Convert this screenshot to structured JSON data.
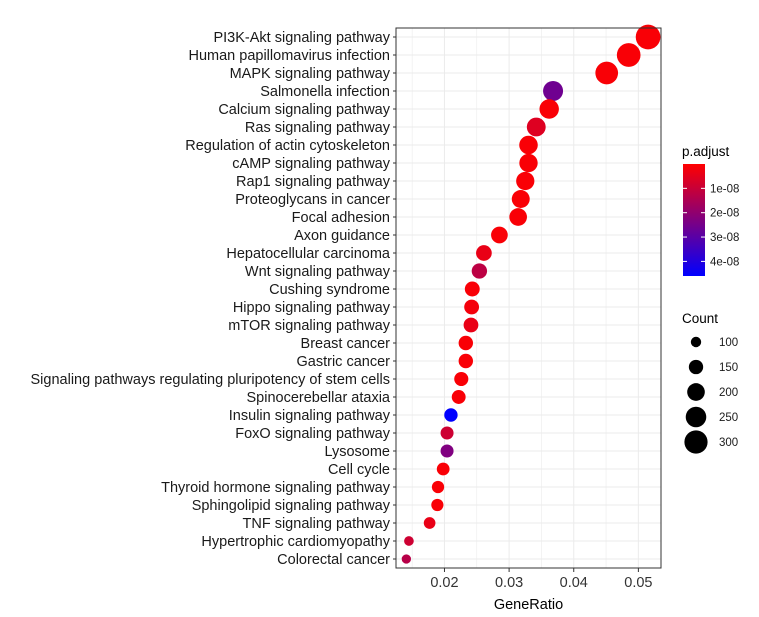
{
  "chart_data": {
    "type": "scatter",
    "xlabel": "GeneRatio",
    "xlim": [
      0.0125,
      0.0535
    ],
    "xticks": [
      0.02,
      0.03,
      0.04,
      0.05
    ],
    "xtick_labels": [
      "0.02",
      "0.03",
      "0.04",
      "0.05"
    ],
    "grid": true,
    "legend_position": "right",
    "color_scale": {
      "title": "p.adjust",
      "low_color": "#ff0000",
      "high_color": "#0000ff",
      "min": 0,
      "max": 4.6e-08,
      "ticks": [
        1e-08,
        2e-08,
        3e-08,
        4e-08
      ],
      "tick_labels": [
        "1e-08",
        "2e-08",
        "3e-08",
        "4e-08"
      ]
    },
    "size_scale": {
      "title": "Count",
      "values": [
        100,
        150,
        200,
        250,
        300
      ],
      "labels": [
        "100",
        "150",
        "200",
        "250",
        "300"
      ]
    },
    "points": [
      {
        "term": "PI3K-Akt signaling pathway",
        "gene_ratio": 0.0515,
        "count": 330,
        "p_adjust": 1e-09
      },
      {
        "term": "Human papillomavirus infection",
        "gene_ratio": 0.0485,
        "count": 310,
        "p_adjust": 1e-09
      },
      {
        "term": "MAPK signaling pathway",
        "gene_ratio": 0.0451,
        "count": 290,
        "p_adjust": 1e-09
      },
      {
        "term": "Salmonella infection",
        "gene_ratio": 0.0368,
        "count": 240,
        "p_adjust": 2.6e-08
      },
      {
        "term": "Calcium signaling pathway",
        "gene_ratio": 0.0362,
        "count": 230,
        "p_adjust": 1e-09
      },
      {
        "term": "Ras signaling pathway",
        "gene_ratio": 0.0342,
        "count": 220,
        "p_adjust": 6e-09
      },
      {
        "term": "Regulation of actin cytoskeleton",
        "gene_ratio": 0.033,
        "count": 215,
        "p_adjust": 1e-09
      },
      {
        "term": "cAMP signaling pathway",
        "gene_ratio": 0.033,
        "count": 212,
        "p_adjust": 1e-09
      },
      {
        "term": "Rap1 signaling pathway",
        "gene_ratio": 0.0325,
        "count": 210,
        "p_adjust": 1e-09
      },
      {
        "term": "Proteoglycans in cancer",
        "gene_ratio": 0.0318,
        "count": 205,
        "p_adjust": 1e-09
      },
      {
        "term": "Focal adhesion",
        "gene_ratio": 0.0314,
        "count": 200,
        "p_adjust": 1e-09
      },
      {
        "term": "Axon guidance",
        "gene_ratio": 0.0285,
        "count": 185,
        "p_adjust": 1e-09
      },
      {
        "term": "Hepatocellular carcinoma",
        "gene_ratio": 0.0261,
        "count": 170,
        "p_adjust": 4e-09
      },
      {
        "term": "Wnt signaling pathway",
        "gene_ratio": 0.0254,
        "count": 165,
        "p_adjust": 1.2e-08
      },
      {
        "term": "Cushing syndrome",
        "gene_ratio": 0.0243,
        "count": 158,
        "p_adjust": 1e-09
      },
      {
        "term": "Hippo signaling pathway",
        "gene_ratio": 0.0242,
        "count": 157,
        "p_adjust": 2e-09
      },
      {
        "term": "mTOR signaling pathway",
        "gene_ratio": 0.0241,
        "count": 156,
        "p_adjust": 4e-09
      },
      {
        "term": "Breast cancer",
        "gene_ratio": 0.0233,
        "count": 151,
        "p_adjust": 1e-09
      },
      {
        "term": "Gastric cancer",
        "gene_ratio": 0.0233,
        "count": 151,
        "p_adjust": 1e-09
      },
      {
        "term": "Signaling pathways regulating pluripotency of stem cells",
        "gene_ratio": 0.0226,
        "count": 147,
        "p_adjust": 1e-09
      },
      {
        "term": "Spinocerebellar ataxia",
        "gene_ratio": 0.0222,
        "count": 144,
        "p_adjust": 1e-09
      },
      {
        "term": "Insulin signaling pathway",
        "gene_ratio": 0.021,
        "count": 137,
        "p_adjust": 4.6e-08
      },
      {
        "term": "FoxO signaling pathway",
        "gene_ratio": 0.0204,
        "count": 132,
        "p_adjust": 9e-09
      },
      {
        "term": "Lysosome",
        "gene_ratio": 0.0204,
        "count": 132,
        "p_adjust": 2.3e-08
      },
      {
        "term": "Cell cycle",
        "gene_ratio": 0.0198,
        "count": 129,
        "p_adjust": 1e-09
      },
      {
        "term": "Thyroid hormone signaling pathway",
        "gene_ratio": 0.019,
        "count": 123,
        "p_adjust": 1e-09
      },
      {
        "term": "Sphingolipid signaling pathway",
        "gene_ratio": 0.0189,
        "count": 122,
        "p_adjust": 1e-09
      },
      {
        "term": "TNF signaling pathway",
        "gene_ratio": 0.0177,
        "count": 115,
        "p_adjust": 4e-09
      },
      {
        "term": "Hypertrophic cardiomyopathy",
        "gene_ratio": 0.0145,
        "count": 92,
        "p_adjust": 9e-09
      },
      {
        "term": "Colorectal cancer",
        "gene_ratio": 0.0141,
        "count": 88,
        "p_adjust": 1.3e-08
      }
    ]
  }
}
